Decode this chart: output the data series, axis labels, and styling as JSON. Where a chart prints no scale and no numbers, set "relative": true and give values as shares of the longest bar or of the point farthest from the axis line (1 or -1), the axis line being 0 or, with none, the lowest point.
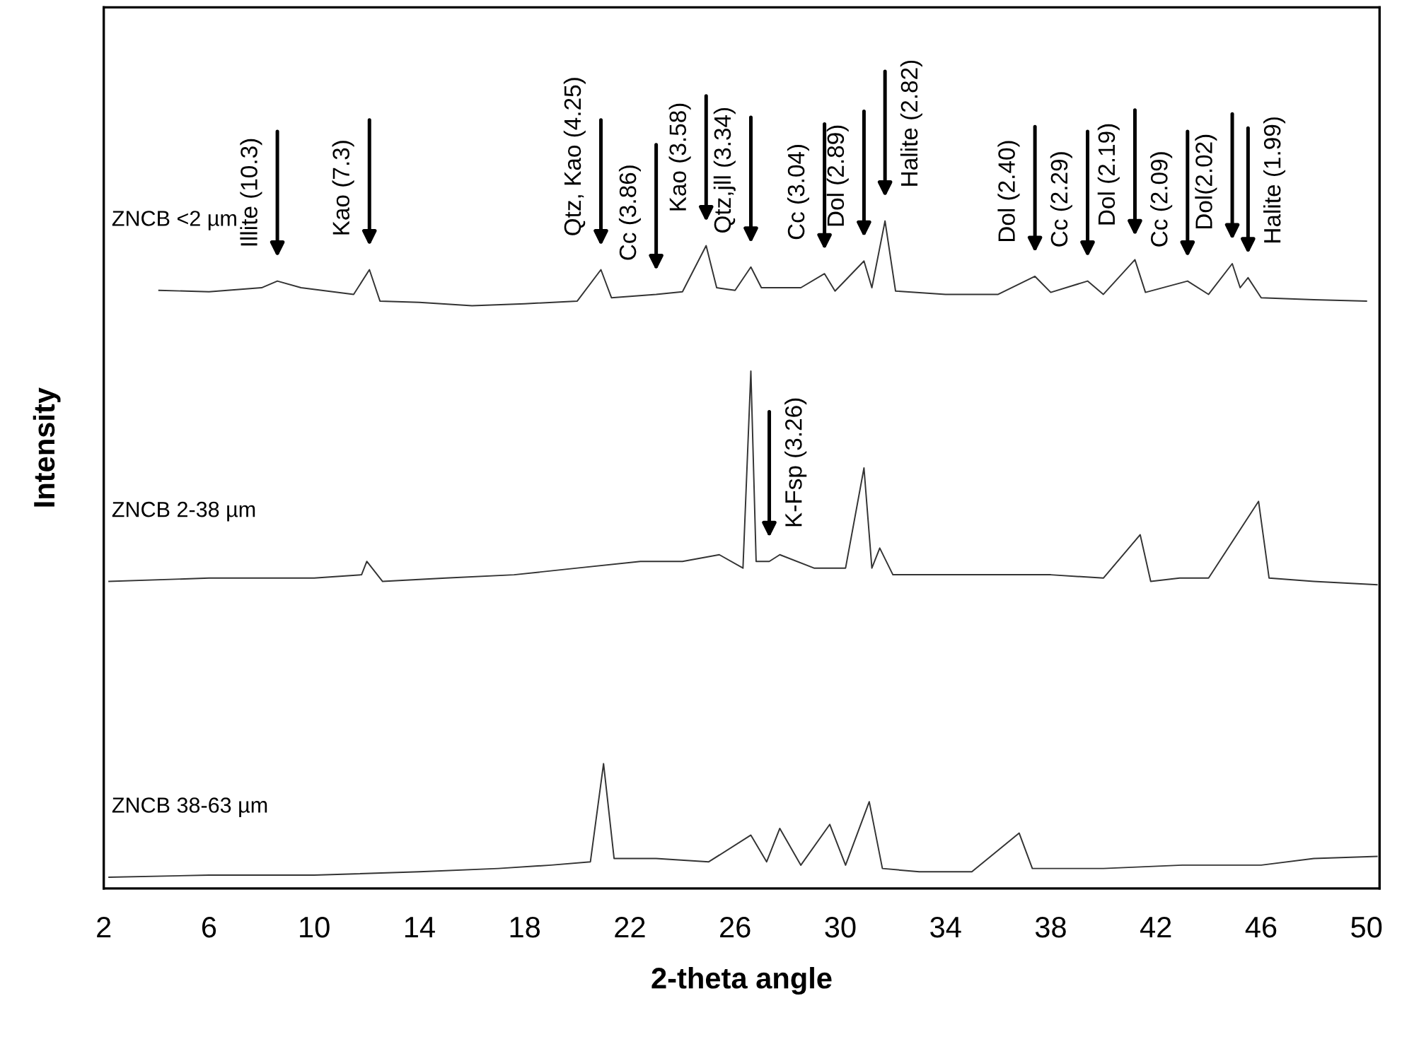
{
  "chart_data": {
    "type": "line",
    "relative": true,
    "xlabel": "2-theta angle",
    "ylabel": "Intensity",
    "xlim": [
      2,
      50.5
    ],
    "xticks": [
      2,
      6,
      10,
      14,
      18,
      22,
      26,
      30,
      34,
      38,
      42,
      46,
      50
    ],
    "tick_labels": "x",
    "grid": false,
    "legend": false,
    "marker": "none",
    "line_style": "solid",
    "series": [
      {
        "name": "ZNCB <2 µm",
        "color": "#333333",
        "x": [
          4.1,
          6,
          8,
          8.6,
          9.5,
          11.5,
          12.1,
          12.5,
          14,
          16,
          18,
          20,
          20.9,
          21.3,
          23,
          24,
          24.9,
          25.3,
          26,
          26.6,
          27,
          28.5,
          29.4,
          29.8,
          30.9,
          31.2,
          31.7,
          32.1,
          34,
          36,
          37.4,
          38,
          39.4,
          40,
          41.2,
          41.6,
          43.2,
          44,
          44.9,
          45.2,
          45.5,
          46,
          48,
          50
        ],
        "values": [
          0.896,
          0.894,
          0.9,
          0.91,
          0.9,
          0.89,
          0.927,
          0.88,
          0.878,
          0.873,
          0.876,
          0.88,
          0.927,
          0.885,
          0.89,
          0.894,
          0.963,
          0.9,
          0.896,
          0.931,
          0.9,
          0.9,
          0.921,
          0.895,
          0.94,
          0.9,
          1.0,
          0.895,
          0.89,
          0.89,
          0.917,
          0.893,
          0.91,
          0.89,
          0.942,
          0.893,
          0.91,
          0.89,
          0.936,
          0.9,
          0.915,
          0.885,
          0.882,
          0.88
        ]
      },
      {
        "name": "ZNCB 2-38 µm",
        "color": "#333333",
        "x": [
          2.2,
          6,
          10,
          11.8,
          12.0,
          12.6,
          15,
          17.6,
          20,
          22.4,
          24,
          25.4,
          26.3,
          26.6,
          26.8,
          27.3,
          27.7,
          29,
          30.2,
          30.9,
          31.2,
          31.5,
          32,
          33.4,
          36,
          38,
          40,
          41.4,
          41.8,
          42.9,
          44,
          45.9,
          46.3,
          48,
          50.4
        ],
        "values": [
          0.46,
          0.465,
          0.465,
          0.47,
          0.49,
          0.46,
          0.465,
          0.47,
          0.48,
          0.49,
          0.49,
          0.5,
          0.48,
          0.775,
          0.49,
          0.49,
          0.5,
          0.48,
          0.48,
          0.63,
          0.48,
          0.51,
          0.47,
          0.47,
          0.47,
          0.47,
          0.465,
          0.53,
          0.46,
          0.465,
          0.465,
          0.58,
          0.465,
          0.46,
          0.455
        ]
      },
      {
        "name": "ZNCB 38-63 µm",
        "color": "#333333",
        "x": [
          2.2,
          6,
          10,
          14,
          17,
          19,
          20.5,
          21.0,
          21.4,
          23,
          25,
          26.6,
          27.2,
          27.7,
          28.5,
          29.6,
          30.2,
          31.1,
          31.6,
          33,
          35,
          36.8,
          37.3,
          40,
          43,
          46,
          48,
          50.4
        ],
        "values": [
          0.017,
          0.02,
          0.02,
          0.025,
          0.03,
          0.035,
          0.04,
          0.187,
          0.045,
          0.045,
          0.04,
          0.08,
          0.04,
          0.09,
          0.035,
          0.096,
          0.035,
          0.13,
          0.03,
          0.025,
          0.025,
          0.083,
          0.03,
          0.03,
          0.035,
          0.035,
          0.045,
          0.048
        ]
      }
    ],
    "annotations": [
      {
        "text": "Illite (10.3)",
        "x": 8.6,
        "y": 0.91
      },
      {
        "text": "Kao (7.3)",
        "x": 12.1,
        "y": 0.927
      },
      {
        "text": "Qtz, Kao (4.25)",
        "x": 20.9,
        "y": 0.927
      },
      {
        "text": "Cc (3.86)",
        "x": 23,
        "y": 0.89
      },
      {
        "text": "Kao (3.58)",
        "x": 24.9,
        "y": 0.963
      },
      {
        "text": "Qtz,jll (3.34)",
        "x": 26.6,
        "y": 0.931
      },
      {
        "text": "K-Fsp (3.26)",
        "x": 27.3,
        "y": 0.49
      },
      {
        "text": "Cc (3.04)",
        "x": 29.4,
        "y": 0.921
      },
      {
        "text": "Dol (2.89)",
        "x": 30.9,
        "y": 0.94
      },
      {
        "text": "Halite (2.82)",
        "x": 31.7,
        "y": 1.0
      },
      {
        "text": "Dol (2.40)",
        "x": 37.4,
        "y": 0.917
      },
      {
        "text": "Cc (2.29)",
        "x": 39.4,
        "y": 0.91
      },
      {
        "text": "Dol (2.19)",
        "x": 41.2,
        "y": 0.942
      },
      {
        "text": "Cc (2.09)",
        "x": 43.2,
        "y": 0.91
      },
      {
        "text": "Dol(2.02)",
        "x": 44.9,
        "y": 0.936
      },
      {
        "text": "Halite (1.99)",
        "x": 45.5,
        "y": 0.915
      }
    ]
  }
}
